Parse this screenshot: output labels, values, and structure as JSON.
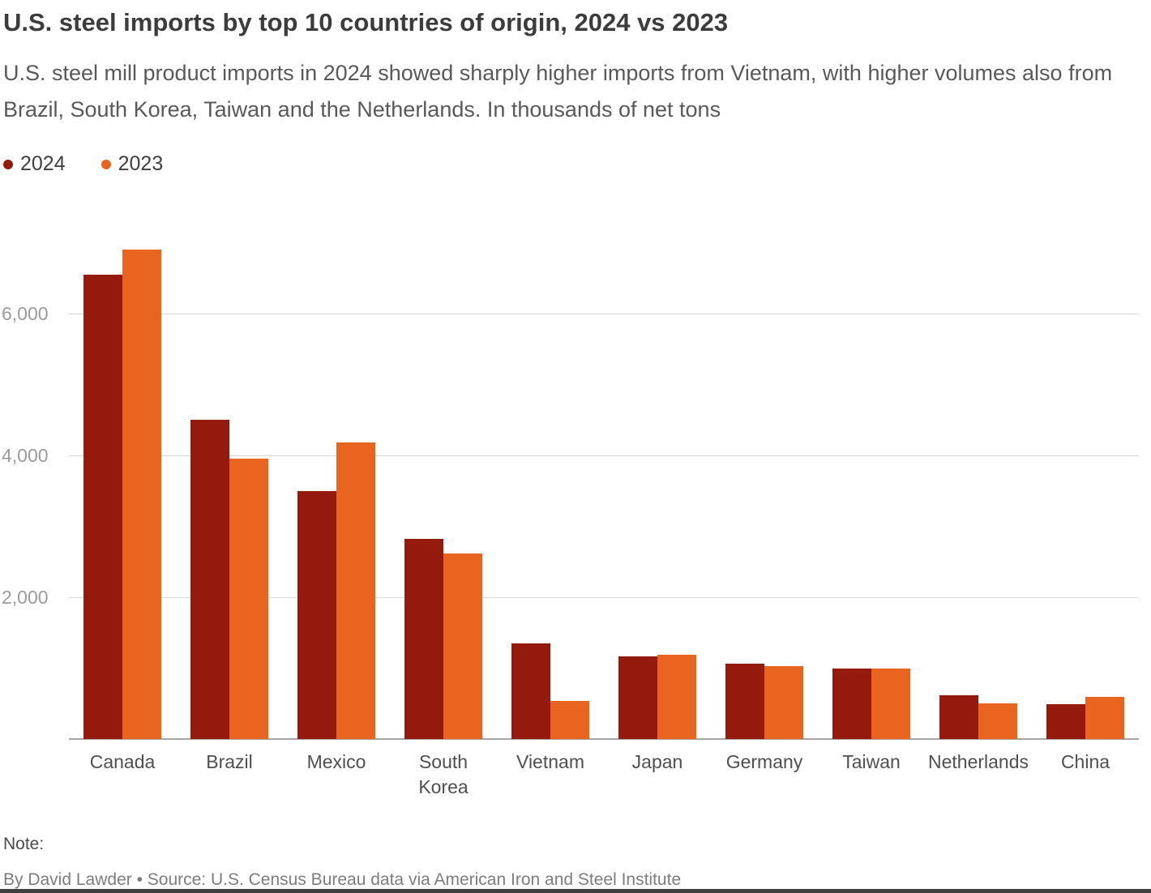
{
  "header": {
    "title": "U.S. steel imports by top 10 countries of origin, 2024 vs 2023",
    "subtitle": "U.S. steel mill product imports in 2024 showed sharply higher imports from Vietnam, with higher volumes also from Brazil, South Korea, Taiwan and the Netherlands. In thousands of net tons"
  },
  "legend": {
    "items": [
      {
        "label": "2024",
        "color": "#941a0e"
      },
      {
        "label": "2023",
        "color": "#e8641f"
      }
    ]
  },
  "chart_data": {
    "type": "bar",
    "title": "U.S. steel imports by top 10 countries of origin, 2024 vs 2023",
    "subtitle": "U.S. steel mill product imports in 2024 showed sharply higher imports from Vietnam, with higher volumes also from Brazil, South Korea, Taiwan and the Netherlands.",
    "unit": "thousands of net tons",
    "categories": [
      "Canada",
      "Brazil",
      "Mexico",
      "South Korea",
      "Vietnam",
      "Japan",
      "Germany",
      "Taiwan",
      "Netherlands",
      "China"
    ],
    "series": [
      {
        "name": "2024",
        "color": "#941a0e",
        "values": [
          6550,
          4500,
          3500,
          2820,
          1350,
          1170,
          1060,
          1000,
          620,
          490
        ]
      },
      {
        "name": "2023",
        "color": "#e8641f",
        "values": [
          6900,
          3950,
          4180,
          2620,
          540,
          1190,
          1030,
          990,
          500,
          590
        ]
      }
    ],
    "xlabel": "",
    "ylabel": "",
    "ylim": [
      0,
      7225
    ],
    "yticks": [
      2000,
      4000,
      6000
    ],
    "ytick_labels": [
      "2,000",
      "4,000",
      "6,000"
    ],
    "grid": true,
    "legend_position": "top-left"
  },
  "footer": {
    "note_label": "Note:",
    "byline": "By David Lawder • Source: U.S. Census Bureau data via American Iron and Steel Institute"
  }
}
